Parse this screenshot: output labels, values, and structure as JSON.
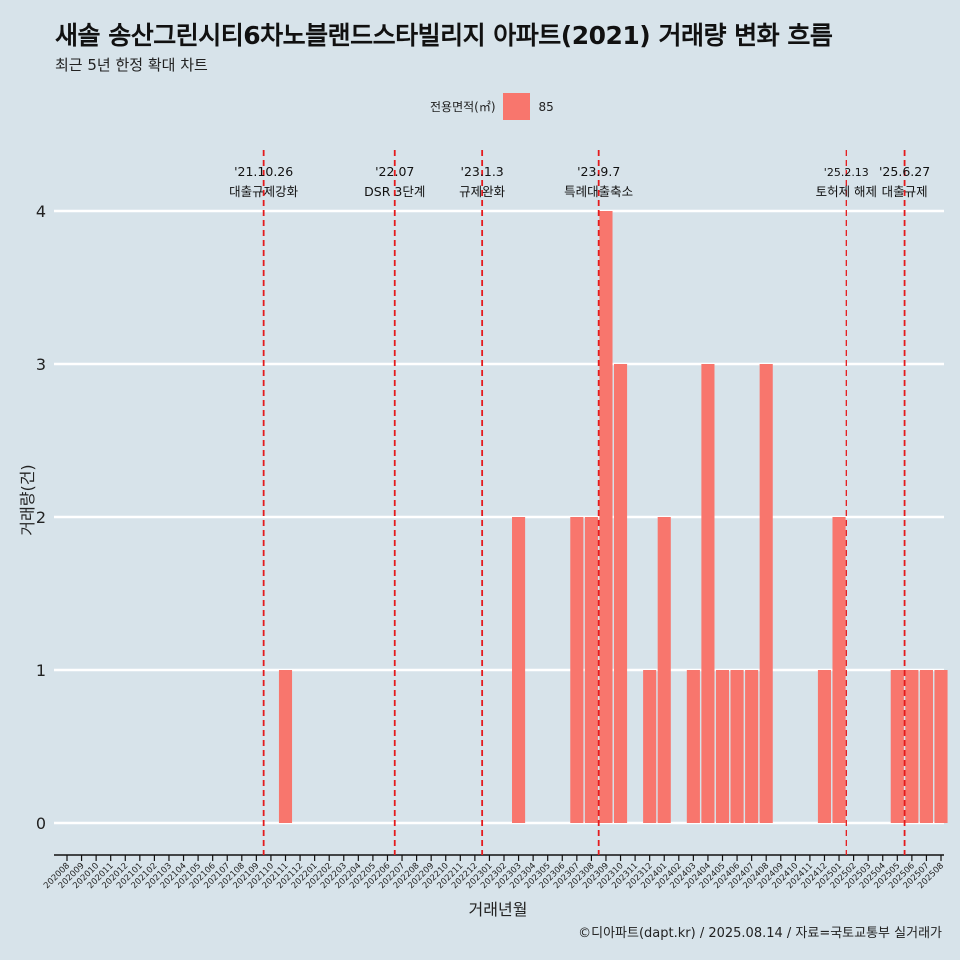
{
  "header": {
    "title": "새솔 송산그린시티6차노블랜드스타빌리지 아파트(2021) 거래량 변화 흐름",
    "subtitle": "최근 5년 한정 확대 차트"
  },
  "legend": {
    "title": "전용면적(㎡)",
    "item": "85"
  },
  "caption": "©디아파트(dapt.kr) / 2025.08.14 / 자료=국토교통부 실거래가",
  "colors": {
    "bar": "#f8766d",
    "background": "#d7e3ea",
    "grid": "#ffffff",
    "event_line": "#e41a1c"
  },
  "chart_data": {
    "type": "bar",
    "xlabel": "거래년월",
    "ylabel": "거래량(건)",
    "ylim": [
      0,
      4
    ],
    "yticks": [
      0,
      1,
      2,
      3,
      4
    ],
    "grid": true,
    "legend_position": "top",
    "categories": [
      "202008",
      "202009",
      "202010",
      "202011",
      "202012",
      "202101",
      "202102",
      "202103",
      "202104",
      "202105",
      "202106",
      "202107",
      "202108",
      "202109",
      "202110",
      "202111",
      "202112",
      "202201",
      "202202",
      "202203",
      "202204",
      "202205",
      "202206",
      "202207",
      "202208",
      "202209",
      "202210",
      "202211",
      "202212",
      "202301",
      "202302",
      "202303",
      "202304",
      "202305",
      "202306",
      "202307",
      "202308",
      "202309",
      "202310",
      "202311",
      "202312",
      "202401",
      "202402",
      "202403",
      "202404",
      "202405",
      "202406",
      "202407",
      "202408",
      "202409",
      "202410",
      "202411",
      "202412",
      "202501",
      "202502",
      "202503",
      "202504",
      "202505",
      "202506",
      "202507",
      "202508"
    ],
    "series": [
      {
        "name": "85",
        "values": [
          0,
          0,
          0,
          0,
          0,
          0,
          0,
          0,
          0,
          0,
          0,
          0,
          0,
          0,
          0,
          1,
          0,
          0,
          0,
          0,
          0,
          0,
          0,
          0,
          0,
          0,
          0,
          0,
          0,
          0,
          0,
          2,
          0,
          0,
          0,
          2,
          2,
          4,
          3,
          0,
          1,
          2,
          0,
          1,
          3,
          1,
          1,
          1,
          3,
          0,
          0,
          0,
          1,
          2,
          0,
          0,
          0,
          1,
          1,
          1,
          1
        ]
      }
    ],
    "annotations": [
      {
        "date": "'21.10.26",
        "label": "대출규제강화",
        "x": "202110"
      },
      {
        "date": "'22.07",
        "label": "DSR 3단계",
        "x": "202207"
      },
      {
        "date": "'23.1.3",
        "label": "규제완화",
        "x": "202301"
      },
      {
        "date": "'23.9.7",
        "label": "특례대출축소",
        "x": "202309"
      },
      {
        "date": "'25.2.13",
        "label": "토허제 해제",
        "x": "202502"
      },
      {
        "date": "'25.6.27",
        "label": "대출규제",
        "x": "202506"
      }
    ]
  }
}
